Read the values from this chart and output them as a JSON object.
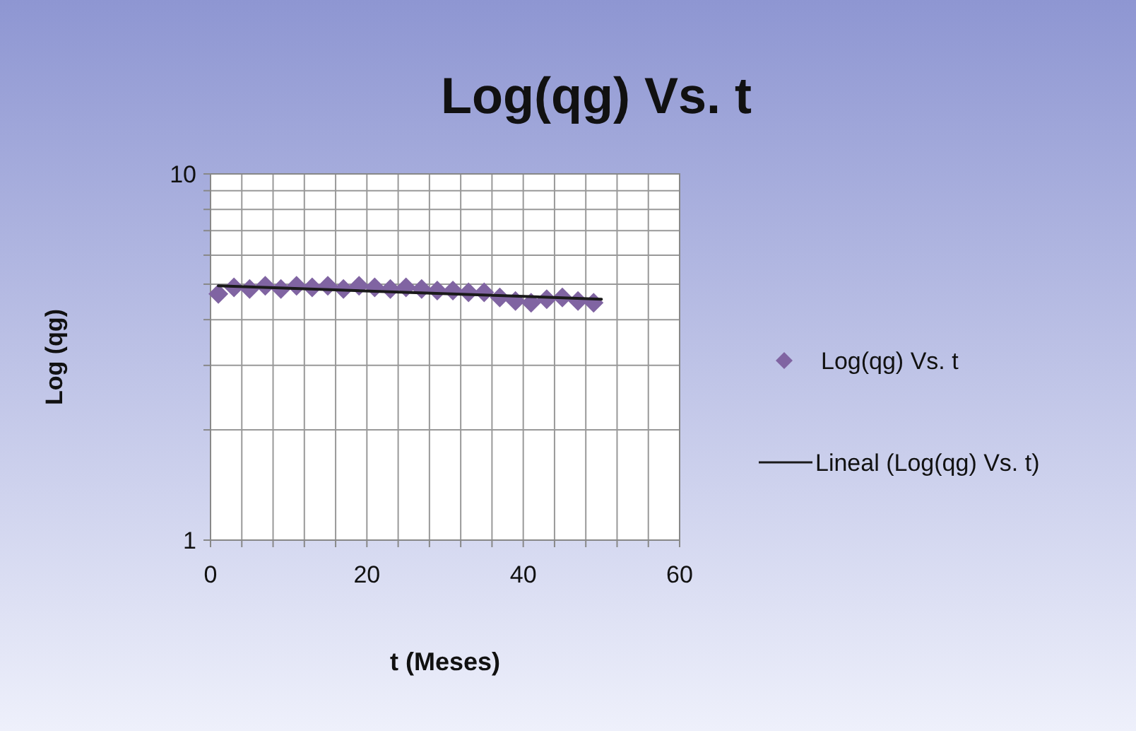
{
  "chart_data": {
    "type": "scatter",
    "title": "Log(qg) Vs. t",
    "xlabel": "t (Meses)",
    "ylabel": "Log (qg)",
    "x": [
      1,
      3,
      5,
      7,
      9,
      11,
      13,
      15,
      17,
      19,
      21,
      23,
      25,
      27,
      29,
      31,
      33,
      35,
      37,
      39,
      41,
      43,
      45,
      47,
      49
    ],
    "series": [
      {
        "name": "Log(qg) Vs. t",
        "color": "#8064a2",
        "values": [
          4.7,
          4.9,
          4.85,
          4.95,
          4.85,
          4.95,
          4.9,
          4.95,
          4.85,
          4.95,
          4.9,
          4.85,
          4.9,
          4.85,
          4.8,
          4.8,
          4.75,
          4.75,
          4.6,
          4.5,
          4.45,
          4.55,
          4.6,
          4.5,
          4.45
        ],
        "marker": "diamond"
      },
      {
        "name": "Lineal (Log(qg) Vs. t)",
        "type": "line",
        "color": "#1a1a1a",
        "x": [
          1,
          50
        ],
        "values": [
          4.95,
          4.55
        ],
        "marker": "none"
      }
    ],
    "xlim": [
      0,
      60
    ],
    "xticks": [
      0,
      {
        "value": 4,
        "label": null
      },
      {
        "value": 8,
        "label": null
      },
      {
        "value": 12,
        "label": null
      },
      {
        "value": 16,
        "label": null
      },
      20,
      {
        "value": 24,
        "label": null
      },
      {
        "value": 28,
        "label": null
      },
      {
        "value": 32,
        "label": null
      },
      {
        "value": 36,
        "label": null
      },
      40,
      {
        "value": 44,
        "label": null
      },
      {
        "value": 48,
        "label": null
      },
      {
        "value": 52,
        "label": null
      },
      {
        "value": 56,
        "label": null
      },
      60
    ],
    "ylim": [
      1,
      10
    ],
    "yticks": [
      1,
      {
        "value": 2,
        "label": null
      },
      {
        "value": 3,
        "label": null
      },
      {
        "value": 4,
        "label": null
      },
      {
        "value": 5,
        "label": null
      },
      {
        "value": 6,
        "label": null
      },
      {
        "value": 7,
        "label": null
      },
      {
        "value": 8,
        "label": null
      },
      {
        "value": 9,
        "label": null
      },
      10
    ],
    "log": "y",
    "grid": true,
    "legend": "right"
  }
}
